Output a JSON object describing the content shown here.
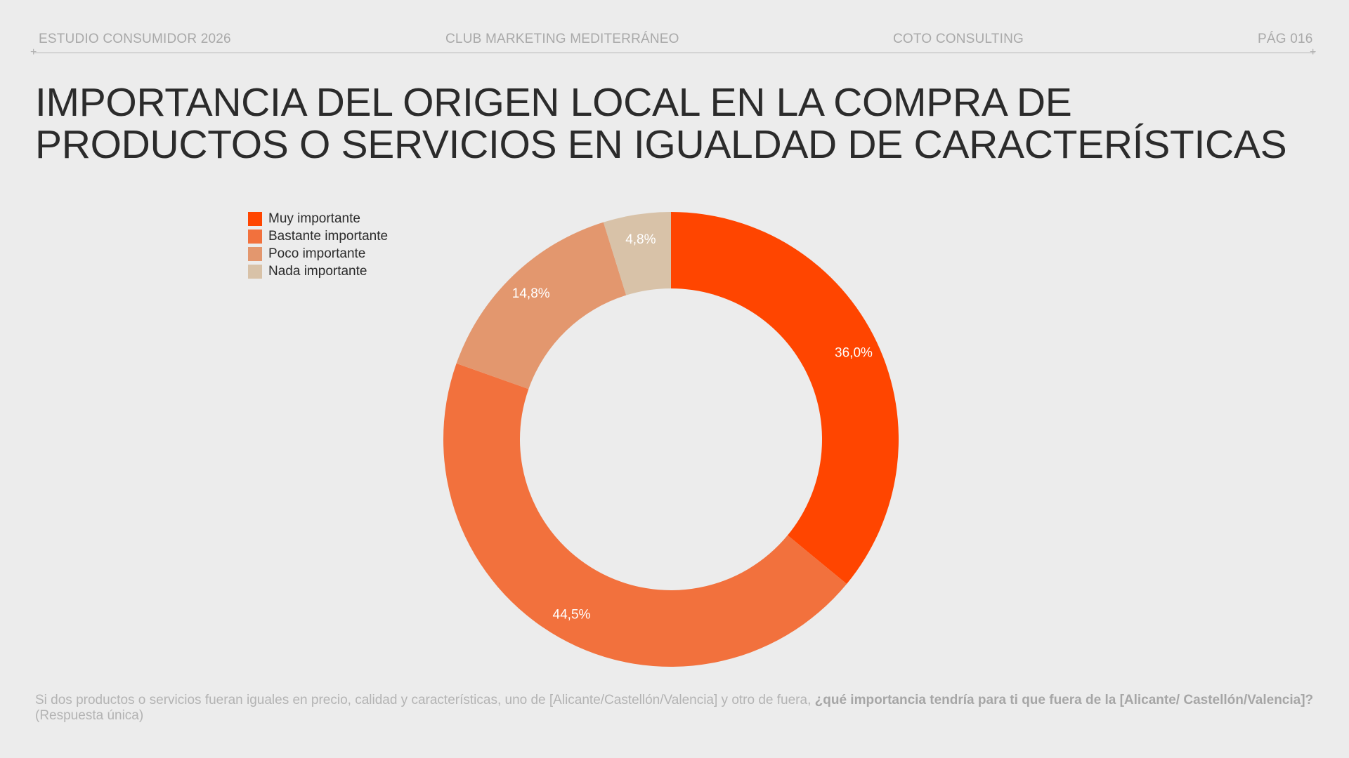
{
  "header": {
    "left": "ESTUDIO CONSUMIDOR 2026",
    "center_left": "CLUB MARKETING MEDITERRÁNEO",
    "center_right": "COTO CONSULTING",
    "right": "PÁG 016"
  },
  "chart_data": {
    "type": "pie",
    "variant": "donut",
    "title": "IMPORTANCIA DEL ORIGEN LOCAL EN LA COMPRA DE PRODUCTOS O SERVICIOS EN IGUALDAD DE CARACTERÍSTICAS",
    "title_lines": [
      "IMPORTANCIA DEL ORIGEN LOCAL EN LA COMPRA DE",
      "PRODUCTOS O SERVICIOS EN IGUALDAD DE CARACTERÍSTICAS"
    ],
    "legend_position": "top-left",
    "categories": [
      "Muy importante",
      "Bastante importante",
      "Poco importante",
      "Nada importante"
    ],
    "values": [
      36.0,
      44.5,
      14.8,
      4.8
    ],
    "labels": [
      "36,0%",
      "44,5%",
      "14,8%",
      "4,8%"
    ],
    "colors": [
      "#ff4500",
      "#f2713d",
      "#e3976e",
      "#d8c2a8"
    ],
    "start_angle": "12 o'clock",
    "direction": "clockwise"
  },
  "footnote": {
    "plain": "Si dos productos o servicios fueran iguales en precio, calidad y características, uno de [Alicante/Castellón/Valencia] y otro de fuera, ",
    "bold": "¿qué importancia tendría para ti que fuera de la [Alicante/ Castellón/Valencia]?",
    "suffix": " (Respuesta única)"
  }
}
